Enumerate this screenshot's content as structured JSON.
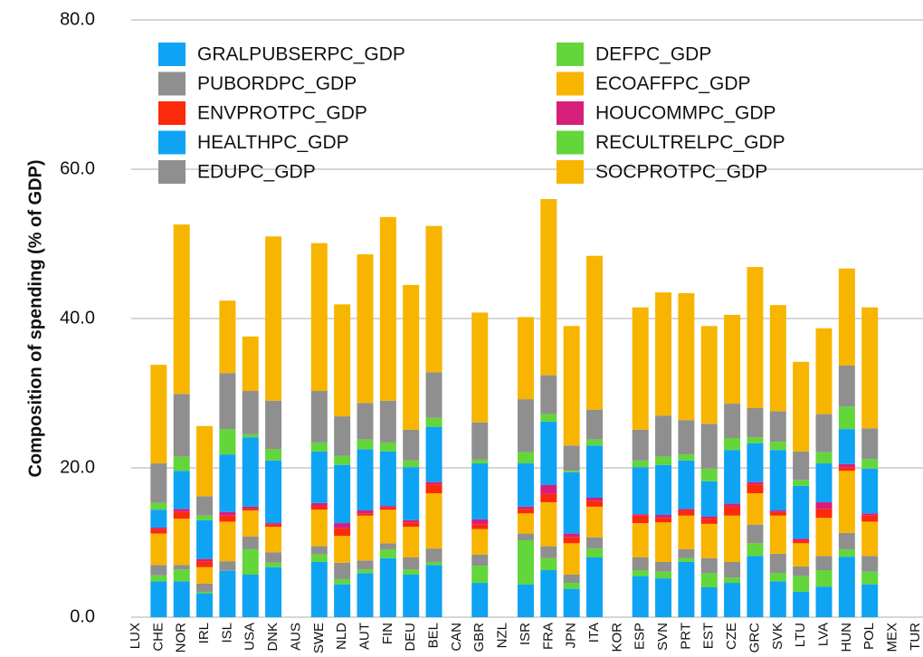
{
  "chart_data": {
    "type": "stacked_bar",
    "y_label": "Composition of spending (% of GDP)",
    "categories": [
      "LUX",
      "CHE",
      "NOR",
      "IRL",
      "ISL",
      "USA",
      "DNK",
      "AUS",
      "SWE",
      "NLD",
      "AUT",
      "FIN",
      "DEU",
      "BEL",
      "CAN",
      "GBR",
      "NZL",
      "ISR",
      "FRA",
      "JPN",
      "ITA",
      "KOR",
      "ESP",
      "SVN",
      "PRT",
      "EST",
      "CZE",
      "GRC",
      "SVK",
      "LTU",
      "LVA",
      "HUN",
      "POL",
      "MEX",
      "TUR"
    ],
    "ylim": [
      0,
      80
    ],
    "yticks": [
      {
        "value": 0,
        "label": "0.0"
      },
      {
        "value": 20,
        "label": "20.0"
      },
      {
        "value": 40,
        "label": "40.0"
      },
      {
        "value": 60,
        "label": "60.0"
      },
      {
        "value": 80,
        "label": "80.0"
      }
    ],
    "grid": true,
    "legend": "top",
    "series": [
      {
        "name": "GRALPUBSERPC_GDP",
        "color": "#0fa3f4",
        "values": [
          null,
          4.8,
          4.8,
          3.2,
          6.2,
          5.7,
          6.7,
          null,
          7.4,
          4.4,
          5.9,
          7.9,
          5.7,
          7.0,
          null,
          4.6,
          null,
          4.4,
          6.3,
          3.8,
          8.0,
          null,
          5.5,
          5.2,
          7.4,
          4.0,
          4.6,
          8.2,
          4.8,
          3.4,
          4.1,
          8.1,
          4.4,
          null,
          null
        ]
      },
      {
        "name": "DEFPC_GDP",
        "color": "#62d63a",
        "values": [
          null,
          0.8,
          1.6,
          0.2,
          0,
          3.4,
          0.6,
          null,
          1.0,
          0.7,
          0.5,
          1.2,
          0.7,
          0.4,
          null,
          2.3,
          null,
          5.9,
          1.6,
          0.8,
          1.2,
          null,
          0.8,
          0.9,
          0.5,
          1.9,
          0.7,
          1.7,
          1.1,
          2.1,
          2.2,
          1.0,
          1.7,
          null,
          null
        ]
      },
      {
        "name": "PUBORDPC_GDP",
        "color": "#8f8f8f",
        "values": [
          null,
          1.4,
          0.6,
          1.1,
          1.3,
          1.7,
          1.4,
          null,
          1.1,
          2.2,
          1.2,
          0.8,
          1.6,
          1.8,
          null,
          1.5,
          null,
          0.9,
          1.6,
          1.1,
          1.5,
          null,
          1.7,
          1.3,
          1.2,
          2.0,
          2.1,
          2.5,
          2.6,
          1.3,
          1.9,
          2.2,
          2.1,
          null,
          null
        ]
      },
      {
        "name": "ECOAFFPC_GDP",
        "color": "#f7b500",
        "values": [
          null,
          4.2,
          6.2,
          2.2,
          5.3,
          3.5,
          3.4,
          null,
          4.9,
          3.6,
          6.0,
          4.5,
          4.1,
          7.4,
          null,
          3.4,
          null,
          2.7,
          5.9,
          4.2,
          4.1,
          null,
          4.6,
          5.3,
          4.5,
          4.6,
          6.2,
          4.2,
          5.1,
          3.1,
          5.1,
          8.3,
          4.6,
          null,
          null
        ]
      },
      {
        "name": "ENVPROTPC_GDP",
        "color": "#fb2a0a",
        "values": [
          null,
          0.6,
          0.9,
          0.8,
          0.8,
          0.2,
          0.3,
          null,
          0.5,
          1.0,
          0.3,
          0.3,
          0.6,
          1.2,
          null,
          0.6,
          null,
          0.6,
          1.1,
          0.8,
          0.8,
          null,
          1.0,
          0.6,
          0.7,
          0.7,
          1.2,
          1.2,
          0.5,
          0.4,
          1.2,
          0.5,
          0.8,
          null,
          null
        ]
      },
      {
        "name": "HOUCOMMPC_GDP",
        "color": "#d61f7a",
        "values": [
          null,
          0.2,
          0.4,
          0.3,
          0.5,
          0.3,
          0.2,
          null,
          0.4,
          0.7,
          0.4,
          0.2,
          0.3,
          0.3,
          null,
          0.7,
          null,
          0.3,
          1.2,
          0.5,
          0.4,
          null,
          0.2,
          0.4,
          0.2,
          0.3,
          0.4,
          0.3,
          0.2,
          0.2,
          0.9,
          0.4,
          0.3,
          null,
          null
        ]
      },
      {
        "name": "HEALTHPC_GDP",
        "color": "#0fa3f4",
        "values": [
          null,
          2.4,
          5.1,
          5.2,
          7.7,
          9.3,
          8.4,
          null,
          6.9,
          7.8,
          8.2,
          7.3,
          7.1,
          7.4,
          null,
          7.5,
          null,
          5.8,
          8.5,
          8.2,
          7.0,
          null,
          6.3,
          6.7,
          6.5,
          4.7,
          7.2,
          5.2,
          8.1,
          7.1,
          5.2,
          4.7,
          6.0,
          null,
          null
        ]
      },
      {
        "name": "RECULTRELPC_GDP",
        "color": "#62d63a",
        "values": [
          null,
          0.9,
          1.9,
          0.6,
          3.4,
          0.4,
          1.5,
          null,
          1.2,
          1.2,
          1.3,
          1.2,
          0.9,
          1.2,
          null,
          0.5,
          null,
          1.5,
          1.0,
          0.2,
          0.8,
          null,
          0.9,
          1.1,
          0.8,
          1.7,
          1.6,
          0.8,
          1.1,
          0.8,
          1.5,
          3.0,
          1.3,
          null,
          null
        ]
      },
      {
        "name": "EDUPC_GDP",
        "color": "#8f8f8f",
        "values": [
          null,
          5.3,
          8.4,
          2.6,
          7.5,
          5.8,
          6.5,
          null,
          6.9,
          5.3,
          4.9,
          5.6,
          4.1,
          6.1,
          null,
          5.0,
          null,
          7.1,
          5.2,
          3.4,
          4.0,
          null,
          4.1,
          5.5,
          4.6,
          6.0,
          4.6,
          3.9,
          4.1,
          3.8,
          5.1,
          5.5,
          4.1,
          null,
          null
        ]
      },
      {
        "name": "SOCPROTPC_GDP",
        "color": "#f7b500",
        "values": [
          null,
          13.2,
          22.7,
          9.4,
          9.7,
          7.3,
          22.0,
          null,
          19.8,
          15.0,
          19.9,
          24.6,
          19.4,
          19.6,
          null,
          14.7,
          null,
          11.0,
          23.6,
          16.0,
          20.6,
          null,
          16.4,
          16.5,
          17.0,
          13.1,
          11.9,
          18.9,
          14.2,
          12.0,
          11.5,
          13.0,
          16.2,
          null,
          null
        ]
      }
    ]
  }
}
